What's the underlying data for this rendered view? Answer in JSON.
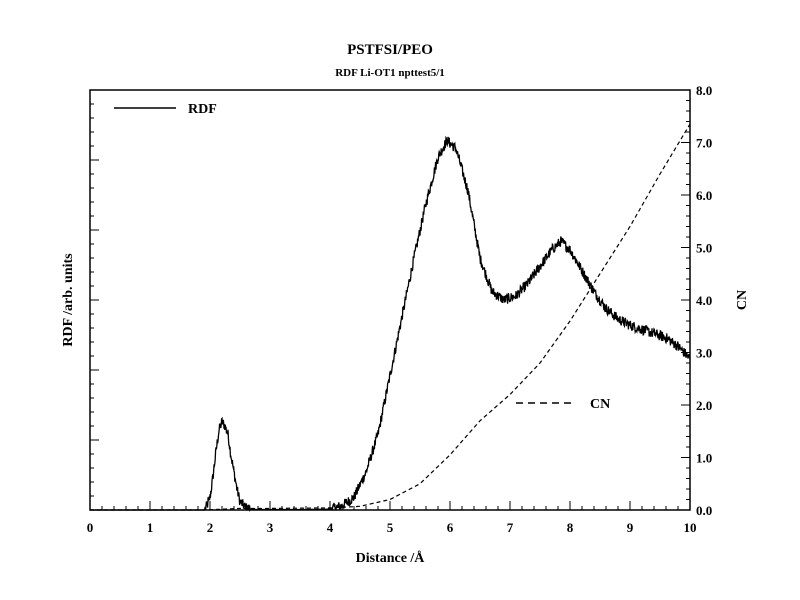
{
  "chart_data": {
    "type": "line",
    "title": "PSTFSI/PEO",
    "subtitle": "RDF Li-OT1 npttest5/1",
    "xlabel": "Distance /Å",
    "ylabel_left": "RDF /arb. units",
    "ylabel_right": "CN",
    "xlim": [
      0,
      10
    ],
    "ylim_left": [
      0,
      1
    ],
    "ylim_right": [
      0,
      8
    ],
    "x_ticks": [
      "0",
      "1",
      "2",
      "3",
      "4",
      "5",
      "6",
      "7",
      "8",
      "9",
      "10"
    ],
    "right_ticks": [
      "0.0",
      "1.0",
      "2.0",
      "3.0",
      "4.0",
      "5.0",
      "6.0",
      "7.0",
      "8.0"
    ],
    "legend": [
      {
        "name": "RDF",
        "style": "solid"
      },
      {
        "name": "CN",
        "style": "dashed"
      }
    ],
    "series": [
      {
        "name": "RDF",
        "axis": "left",
        "x": [
          0,
          1.9,
          1.95,
          2.0,
          2.05,
          2.1,
          2.15,
          2.2,
          2.25,
          2.3,
          2.35,
          2.4,
          2.45,
          2.5,
          2.6,
          2.7,
          2.8,
          3.0,
          3.5,
          4.0,
          4.2,
          4.4,
          4.6,
          4.8,
          5.0,
          5.2,
          5.4,
          5.6,
          5.8,
          5.95,
          6.1,
          6.3,
          6.5,
          6.7,
          6.9,
          7.1,
          7.3,
          7.5,
          7.7,
          7.85,
          8.0,
          8.2,
          8.4,
          8.6,
          8.8,
          9.0,
          9.2,
          9.4,
          9.6,
          9.8,
          10.0
        ],
        "y": [
          0,
          0,
          0.01,
          0.03,
          0.08,
          0.14,
          0.19,
          0.21,
          0.2,
          0.18,
          0.13,
          0.09,
          0.05,
          0.02,
          0.005,
          0.002,
          0.001,
          0.001,
          0.001,
          0.002,
          0.01,
          0.03,
          0.09,
          0.18,
          0.32,
          0.46,
          0.6,
          0.73,
          0.84,
          0.88,
          0.86,
          0.76,
          0.6,
          0.52,
          0.5,
          0.51,
          0.54,
          0.58,
          0.62,
          0.64,
          0.62,
          0.57,
          0.52,
          0.48,
          0.455,
          0.44,
          0.43,
          0.42,
          0.41,
          0.39,
          0.36
        ]
      },
      {
        "name": "CN",
        "axis": "right",
        "x": [
          0,
          1.9,
          2.5,
          3.0,
          4.0,
          4.5,
          5.0,
          5.5,
          6.0,
          6.5,
          7.0,
          7.5,
          8.0,
          8.5,
          9.0,
          9.5,
          10.0
        ],
        "y": [
          0,
          0,
          0.03,
          0.03,
          0.04,
          0.07,
          0.2,
          0.5,
          1.05,
          1.7,
          2.2,
          2.8,
          3.6,
          4.5,
          5.4,
          6.4,
          7.35
        ]
      }
    ]
  }
}
